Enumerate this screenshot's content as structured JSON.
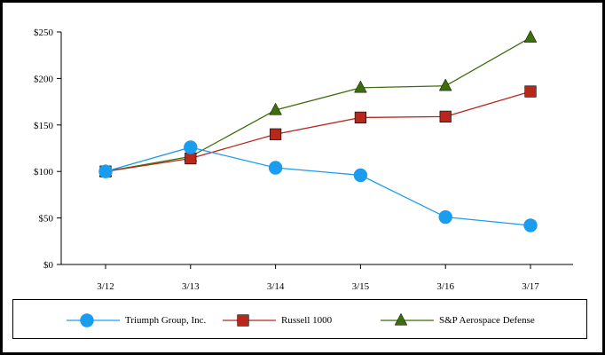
{
  "chart_data": {
    "type": "line",
    "title": "",
    "xlabel": "",
    "ylabel": "",
    "categories": [
      "3/12",
      "3/13",
      "3/14",
      "3/15",
      "3/16",
      "3/17"
    ],
    "ylim": [
      0,
      250
    ],
    "yticks": [
      0,
      50,
      100,
      150,
      200,
      250
    ],
    "ytick_labels": [
      "$0",
      "$50",
      "$100",
      "$150",
      "$200",
      "$250"
    ],
    "grid": false,
    "legend_position": "bottom",
    "series": [
      {
        "name": "Triumph Group, Inc.",
        "values": [
          100,
          126,
          104,
          96,
          51,
          42
        ],
        "color": "#1a9cef",
        "marker": "circle"
      },
      {
        "name": "Russell 1000",
        "values": [
          100,
          114,
          140,
          158,
          159,
          186
        ],
        "color": "#b7271c",
        "marker": "square"
      },
      {
        "name": "S&P Aerospace Defense",
        "values": [
          100,
          116,
          166,
          190,
          192,
          244
        ],
        "color": "#3c6e0c",
        "marker": "triangle"
      }
    ]
  }
}
